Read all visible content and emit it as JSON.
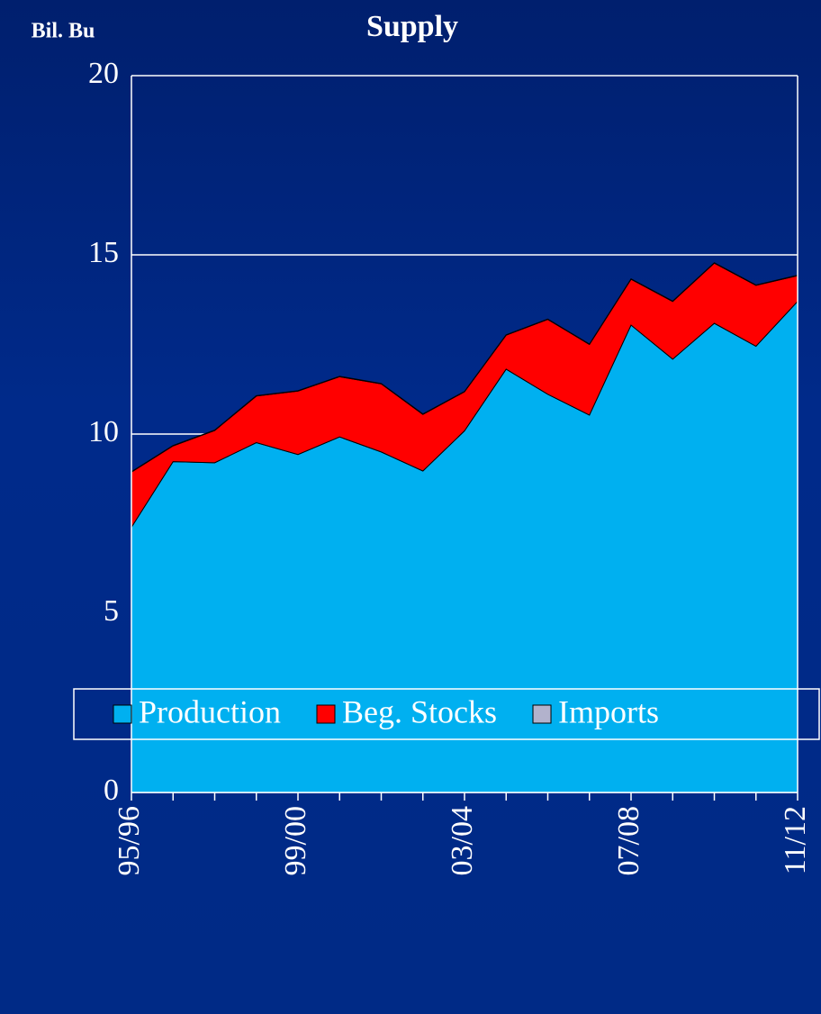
{
  "chart_data": {
    "type": "stacked_area",
    "title": "Supply",
    "y_label": "Bil. Bu",
    "categories": [
      "95/96",
      null,
      null,
      null,
      "99/00",
      null,
      null,
      null,
      "03/04",
      null,
      null,
      null,
      "07/08",
      null,
      null,
      null,
      "11/12"
    ],
    "series": [
      {
        "name": "Production",
        "color": "#00b0f0",
        "values": [
          7.4,
          9.23,
          9.2,
          9.76,
          9.43,
          9.92,
          9.5,
          8.97,
          10.09,
          11.81,
          11.11,
          10.53,
          13.04,
          12.09,
          13.09,
          12.45,
          13.7
        ]
      },
      {
        "name": "Beg. Stocks",
        "color": "#ff0000",
        "values": [
          1.54,
          0.44,
          0.9,
          1.3,
          1.77,
          1.68,
          1.9,
          1.58,
          1.09,
          0.95,
          2.09,
          1.97,
          1.28,
          1.61,
          1.68,
          1.7,
          0.72
        ]
      },
      {
        "name": "Imports",
        "color": "#b2b2cc",
        "values": [
          0.01,
          0.01,
          0.01,
          0.01,
          0.01,
          0.01,
          0.01,
          0.01,
          0.01,
          0.01,
          0.01,
          0.01,
          0.01,
          0.01,
          0.01,
          0.01,
          0.01
        ]
      }
    ],
    "ylim": [
      0,
      20
    ],
    "yticks": [
      0,
      5,
      10,
      15,
      20
    ],
    "grid": true,
    "legend": "bottom"
  }
}
